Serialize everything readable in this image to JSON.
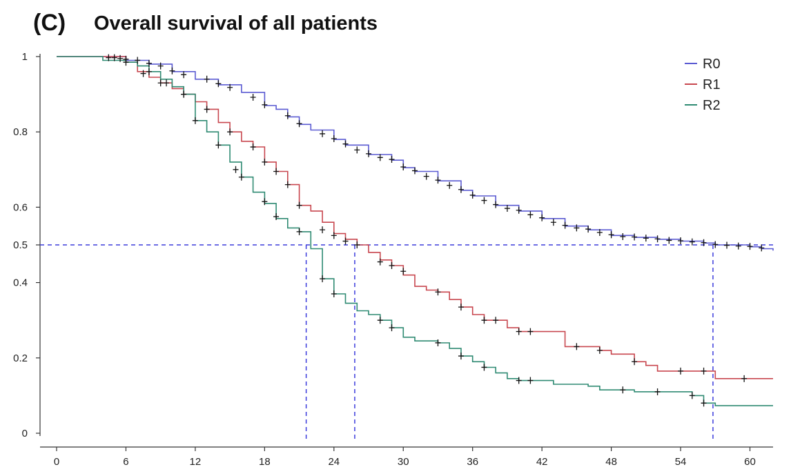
{
  "panel_label": "(C)",
  "chart_data": {
    "type": "line",
    "subtype": "kaplan-meier-step",
    "title": "Overall survival of all patients",
    "xlabel": "",
    "ylabel": "",
    "xlim": [
      0,
      62
    ],
    "ylim": [
      0,
      1
    ],
    "x_ticks": [
      0,
      6,
      12,
      18,
      24,
      30,
      36,
      42,
      48,
      54,
      60
    ],
    "x_tick_labels": [
      "0",
      "6",
      "12",
      "18",
      "24",
      "30",
      "36",
      "42",
      "48",
      "54",
      "60"
    ],
    "y_ticks": [
      0,
      0.2,
      0.4,
      0.5,
      0.6,
      0.8,
      1
    ],
    "y_tick_labels": [
      "0",
      "0.2",
      "0.4",
      "0.5",
      "0.6",
      "0.8",
      "1"
    ],
    "grid": false,
    "legend_position": "top-right",
    "median_reference": {
      "y": 0.5,
      "x_medians": [
        21.6,
        25.8,
        56.8
      ],
      "color": "#3b3bdc",
      "style": "dashed"
    },
    "series": [
      {
        "name": "R0",
        "color": "#5a5ad2",
        "points": [
          [
            0,
            1
          ],
          [
            4,
            1
          ],
          [
            6,
            0.99
          ],
          [
            8,
            0.98
          ],
          [
            10,
            0.96
          ],
          [
            12,
            0.94
          ],
          [
            14,
            0.925
          ],
          [
            16,
            0.905
          ],
          [
            18,
            0.87
          ],
          [
            19,
            0.86
          ],
          [
            20,
            0.84
          ],
          [
            21,
            0.82
          ],
          [
            22,
            0.805
          ],
          [
            24,
            0.78
          ],
          [
            25,
            0.765
          ],
          [
            27,
            0.74
          ],
          [
            29,
            0.725
          ],
          [
            30,
            0.705
          ],
          [
            31,
            0.695
          ],
          [
            33,
            0.67
          ],
          [
            35,
            0.645
          ],
          [
            36,
            0.63
          ],
          [
            38,
            0.605
          ],
          [
            40,
            0.59
          ],
          [
            42,
            0.57
          ],
          [
            44,
            0.55
          ],
          [
            46,
            0.54
          ],
          [
            48,
            0.525
          ],
          [
            50,
            0.52
          ],
          [
            52,
            0.515
          ],
          [
            54,
            0.51
          ],
          [
            56,
            0.505
          ],
          [
            57,
            0.5
          ],
          [
            60,
            0.495
          ],
          [
            61,
            0.49
          ],
          [
            62,
            0.485
          ]
        ],
        "censors": [
          [
            4.5,
            0.997
          ],
          [
            5,
            0.997
          ],
          [
            5.5,
            0.995
          ],
          [
            6,
            0.993
          ],
          [
            7,
            0.99
          ],
          [
            8,
            0.982
          ],
          [
            9,
            0.975
          ],
          [
            10,
            0.962
          ],
          [
            11,
            0.952
          ],
          [
            13,
            0.94
          ],
          [
            14,
            0.928
          ],
          [
            15,
            0.918
          ],
          [
            17,
            0.892
          ],
          [
            18,
            0.872
          ],
          [
            20,
            0.843
          ],
          [
            21,
            0.822
          ],
          [
            23,
            0.795
          ],
          [
            24,
            0.782
          ],
          [
            25,
            0.768
          ],
          [
            26,
            0.752
          ],
          [
            27,
            0.742
          ],
          [
            28,
            0.732
          ],
          [
            29,
            0.727
          ],
          [
            30,
            0.707
          ],
          [
            31,
            0.697
          ],
          [
            32,
            0.682
          ],
          [
            33,
            0.672
          ],
          [
            34,
            0.658
          ],
          [
            35,
            0.647
          ],
          [
            36,
            0.632
          ],
          [
            37,
            0.618
          ],
          [
            38,
            0.607
          ],
          [
            39,
            0.597
          ],
          [
            40,
            0.592
          ],
          [
            41,
            0.58
          ],
          [
            42,
            0.572
          ],
          [
            43,
            0.56
          ],
          [
            44,
            0.552
          ],
          [
            45,
            0.545
          ],
          [
            46,
            0.542
          ],
          [
            47,
            0.533
          ],
          [
            48,
            0.527
          ],
          [
            49,
            0.522
          ],
          [
            50,
            0.521
          ],
          [
            51,
            0.518
          ],
          [
            52,
            0.516
          ],
          [
            53,
            0.512
          ],
          [
            54,
            0.511
          ],
          [
            55,
            0.508
          ],
          [
            56,
            0.506
          ],
          [
            57,
            0.501
          ],
          [
            58,
            0.499
          ],
          [
            59,
            0.497
          ],
          [
            60,
            0.496
          ],
          [
            61,
            0.492
          ]
        ]
      },
      {
        "name": "R1",
        "color": "#c8464e",
        "points": [
          [
            0,
            1
          ],
          [
            4,
            1
          ],
          [
            6,
            0.985
          ],
          [
            7,
            0.96
          ],
          [
            8,
            0.945
          ],
          [
            9,
            0.93
          ],
          [
            10,
            0.915
          ],
          [
            11,
            0.9
          ],
          [
            12,
            0.88
          ],
          [
            13,
            0.86
          ],
          [
            14,
            0.825
          ],
          [
            15,
            0.8
          ],
          [
            16,
            0.775
          ],
          [
            17,
            0.76
          ],
          [
            18,
            0.72
          ],
          [
            19,
            0.695
          ],
          [
            20,
            0.66
          ],
          [
            21,
            0.605
          ],
          [
            22,
            0.59
          ],
          [
            23,
            0.56
          ],
          [
            24,
            0.53
          ],
          [
            25,
            0.515
          ],
          [
            26,
            0.5
          ],
          [
            27,
            0.48
          ],
          [
            28,
            0.46
          ],
          [
            29,
            0.445
          ],
          [
            30,
            0.42
          ],
          [
            31,
            0.39
          ],
          [
            32,
            0.38
          ],
          [
            33,
            0.375
          ],
          [
            34,
            0.355
          ],
          [
            35,
            0.335
          ],
          [
            36,
            0.315
          ],
          [
            37,
            0.3
          ],
          [
            39,
            0.28
          ],
          [
            40,
            0.27
          ],
          [
            43,
            0.27
          ],
          [
            44,
            0.23
          ],
          [
            47,
            0.22
          ],
          [
            48,
            0.21
          ],
          [
            50,
            0.19
          ],
          [
            51,
            0.18
          ],
          [
            52,
            0.165
          ],
          [
            56,
            0.165
          ],
          [
            57,
            0.145
          ],
          [
            62,
            0.145
          ]
        ],
        "censors": [
          [
            7.5,
            0.955
          ],
          [
            9,
            0.93
          ],
          [
            11,
            0.9
          ],
          [
            13,
            0.86
          ],
          [
            15,
            0.8
          ],
          [
            17,
            0.76
          ],
          [
            18,
            0.72
          ],
          [
            19,
            0.695
          ],
          [
            20,
            0.66
          ],
          [
            21,
            0.605
          ],
          [
            23,
            0.54
          ],
          [
            24,
            0.525
          ],
          [
            25,
            0.51
          ],
          [
            26,
            0.5
          ],
          [
            28,
            0.455
          ],
          [
            29,
            0.445
          ],
          [
            30,
            0.43
          ],
          [
            33,
            0.375
          ],
          [
            35,
            0.335
          ],
          [
            37,
            0.3
          ],
          [
            38,
            0.3
          ],
          [
            40,
            0.27
          ],
          [
            41,
            0.27
          ],
          [
            45,
            0.23
          ],
          [
            47,
            0.22
          ],
          [
            50,
            0.19
          ],
          [
            54,
            0.165
          ],
          [
            56,
            0.165
          ],
          [
            59.5,
            0.145
          ]
        ]
      },
      {
        "name": "R2",
        "color": "#2e8a72",
        "points": [
          [
            0,
            1
          ],
          [
            3,
            1
          ],
          [
            4,
            0.99
          ],
          [
            6,
            0.985
          ],
          [
            7,
            0.975
          ],
          [
            8,
            0.96
          ],
          [
            9,
            0.94
          ],
          [
            10,
            0.92
          ],
          [
            11,
            0.9
          ],
          [
            12,
            0.83
          ],
          [
            13,
            0.8
          ],
          [
            14,
            0.765
          ],
          [
            15,
            0.72
          ],
          [
            16,
            0.68
          ],
          [
            17,
            0.64
          ],
          [
            18,
            0.61
          ],
          [
            19,
            0.57
          ],
          [
            20,
            0.545
          ],
          [
            21,
            0.535
          ],
          [
            22,
            0.49
          ],
          [
            23,
            0.41
          ],
          [
            24,
            0.37
          ],
          [
            25,
            0.345
          ],
          [
            26,
            0.325
          ],
          [
            27,
            0.315
          ],
          [
            28,
            0.3
          ],
          [
            29,
            0.28
          ],
          [
            30,
            0.255
          ],
          [
            31,
            0.245
          ],
          [
            33,
            0.24
          ],
          [
            34,
            0.225
          ],
          [
            35,
            0.205
          ],
          [
            36,
            0.19
          ],
          [
            37,
            0.175
          ],
          [
            38,
            0.16
          ],
          [
            39,
            0.145
          ],
          [
            40,
            0.14
          ],
          [
            43,
            0.13
          ],
          [
            46,
            0.125
          ],
          [
            47,
            0.115
          ],
          [
            50,
            0.11
          ],
          [
            52,
            0.11
          ],
          [
            55,
            0.1
          ],
          [
            56,
            0.08
          ],
          [
            57,
            0.073
          ],
          [
            62,
            0.073
          ]
        ],
        "censors": [
          [
            6,
            0.985
          ],
          [
            8,
            0.96
          ],
          [
            9.5,
            0.93
          ],
          [
            11,
            0.9
          ],
          [
            12,
            0.83
          ],
          [
            14,
            0.765
          ],
          [
            15.5,
            0.7
          ],
          [
            16,
            0.68
          ],
          [
            18,
            0.615
          ],
          [
            19,
            0.575
          ],
          [
            21,
            0.535
          ],
          [
            23,
            0.41
          ],
          [
            24,
            0.37
          ],
          [
            28,
            0.3
          ],
          [
            29,
            0.28
          ],
          [
            33,
            0.24
          ],
          [
            35,
            0.205
          ],
          [
            37,
            0.175
          ],
          [
            40,
            0.14
          ],
          [
            41,
            0.14
          ],
          [
            49,
            0.115
          ],
          [
            52,
            0.11
          ],
          [
            55,
            0.1
          ],
          [
            56,
            0.08
          ]
        ]
      }
    ]
  }
}
